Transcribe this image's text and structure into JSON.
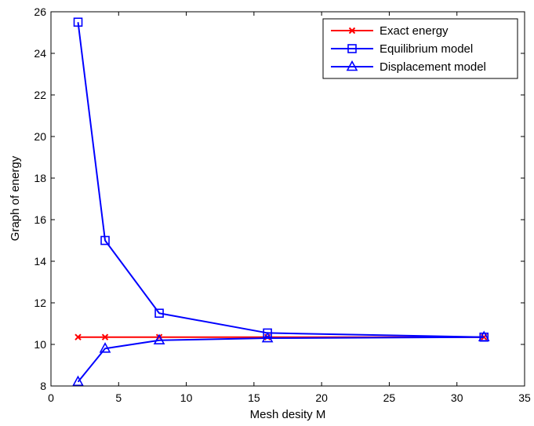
{
  "chart_data": {
    "type": "line",
    "title": "",
    "xlabel": "Mesh desity M",
    "ylabel": "Graph of energy",
    "xlim": [
      0,
      35
    ],
    "ylim": [
      8,
      26
    ],
    "xticks": [
      0,
      5,
      10,
      15,
      20,
      25,
      30,
      35
    ],
    "yticks": [
      8,
      10,
      12,
      14,
      16,
      18,
      20,
      22,
      24,
      26
    ],
    "grid": false,
    "legend_position": "top-right",
    "series": [
      {
        "name": "Exact energy",
        "color": "#ff0000",
        "marker": "x",
        "x": [
          2,
          4,
          8,
          16,
          32
        ],
        "y": [
          10.35,
          10.35,
          10.35,
          10.35,
          10.35
        ]
      },
      {
        "name": "Equilibrium model",
        "color": "#0000ff",
        "marker": "square",
        "x": [
          2,
          4,
          8,
          16,
          32
        ],
        "y": [
          25.5,
          15.0,
          11.5,
          10.55,
          10.35
        ]
      },
      {
        "name": "Displacement model",
        "color": "#0000ff",
        "marker": "triangle",
        "x": [
          2,
          4,
          8,
          16,
          32
        ],
        "y": [
          8.2,
          9.8,
          10.2,
          10.3,
          10.35
        ]
      }
    ]
  }
}
